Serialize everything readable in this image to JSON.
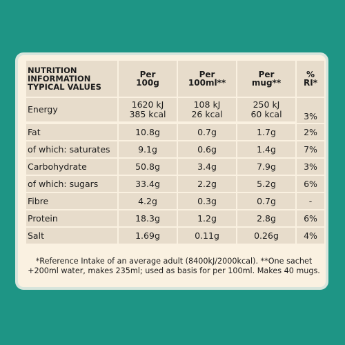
{
  "header": {
    "name": "NUTRITION\nINFORMATION\nTYPICAL VALUES",
    "per100g": "Per\n100g",
    "per100ml": "Per\n100ml**",
    "permug": "Per\nmug**",
    "ri": "%\nRI*"
  },
  "rows": [
    {
      "label": "Energy",
      "per100g": "1620 kJ\n385 kcal",
      "per100ml": "108 kJ\n26 kcal",
      "permug": "250 kJ\n60 kcal",
      "ri": "3%"
    },
    {
      "label": "Fat",
      "per100g": "10.8g",
      "per100ml": "0.7g",
      "permug": "1.7g",
      "ri": "2%"
    },
    {
      "label": "of which: saturates",
      "per100g": "9.1g",
      "per100ml": "0.6g",
      "permug": "1.4g",
      "ri": "7%"
    },
    {
      "label": "Carbohydrate",
      "per100g": "50.8g",
      "per100ml": "3.4g",
      "permug": "7.9g",
      "ri": "3%"
    },
    {
      "label": "of which: sugars",
      "per100g": "33.4g",
      "per100ml": "2.2g",
      "permug": "5.2g",
      "ri": "6%"
    },
    {
      "label": "Fibre",
      "per100g": "4.2g",
      "per100ml": "0.3g",
      "permug": "0.7g",
      "ri": "-"
    },
    {
      "label": "Protein",
      "per100g": "18.3g",
      "per100ml": "1.2g",
      "permug": "2.8g",
      "ri": "6%"
    },
    {
      "label": "Salt",
      "per100g": "1.69g",
      "per100ml": "0.11g",
      "permug": "0.26g",
      "ri": "4%"
    }
  ],
  "footnote": "*Reference Intake of an average adult (8400kJ/2000kcal). **One sachet +200ml water, makes 235ml; used as basis for per 100ml. Makes 40 mugs.",
  "colors": {
    "background": "#1e9585",
    "panel": "#faf1e1",
    "cell": "#e7dccb"
  }
}
